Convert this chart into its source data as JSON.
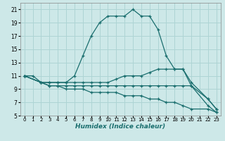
{
  "xlabel": "Humidex (Indice chaleur)",
  "background_color": "#cde8e8",
  "grid_color": "#aed4d4",
  "line_color": "#1a6e6e",
  "xlim": [
    -0.5,
    23.5
  ],
  "ylim": [
    5,
    22
  ],
  "xticks": [
    0,
    1,
    2,
    3,
    4,
    5,
    6,
    7,
    8,
    9,
    10,
    11,
    12,
    13,
    14,
    15,
    16,
    17,
    18,
    19,
    20,
    21,
    22,
    23
  ],
  "yticks": [
    5,
    7,
    9,
    11,
    13,
    15,
    17,
    19,
    21
  ],
  "series": [
    {
      "x": [
        0,
        1,
        2,
        3,
        4,
        5,
        6,
        7,
        8,
        9,
        10,
        11,
        12,
        13,
        14,
        15,
        16,
        17,
        18,
        19,
        20,
        22,
        23
      ],
      "y": [
        11,
        11,
        10,
        10,
        10,
        10,
        11,
        14,
        17,
        19,
        20,
        20,
        20,
        21,
        20,
        20,
        18,
        14,
        12,
        12,
        10,
        7.5,
        6
      ]
    },
    {
      "x": [
        0,
        2,
        3,
        4,
        5,
        6,
        7,
        8,
        9,
        10,
        11,
        12,
        13,
        14,
        15,
        16,
        17,
        18,
        19,
        20,
        22,
        23
      ],
      "y": [
        11,
        10,
        10,
        10,
        10,
        10,
        10,
        10,
        10,
        10,
        10.5,
        11,
        11,
        11,
        11.5,
        12,
        12,
        12,
        12,
        9.5,
        6.5,
        5.5
      ]
    },
    {
      "x": [
        0,
        2,
        3,
        4,
        5,
        6,
        7,
        8,
        9,
        10,
        11,
        12,
        13,
        14,
        15,
        16,
        17,
        18,
        19,
        20,
        22,
        23
      ],
      "y": [
        11,
        10,
        9.5,
        9.5,
        9.5,
        9.5,
        9.5,
        9.5,
        9.5,
        9.5,
        9.5,
        9.5,
        9.5,
        9.5,
        9.5,
        9.5,
        9.5,
        9.5,
        9.5,
        9.5,
        7.5,
        6
      ]
    },
    {
      "x": [
        0,
        2,
        3,
        4,
        5,
        6,
        7,
        8,
        9,
        10,
        11,
        12,
        13,
        14,
        15,
        16,
        17,
        18,
        19,
        20,
        22,
        23
      ],
      "y": [
        11,
        10,
        9.5,
        9.5,
        9,
        9,
        9,
        8.5,
        8.5,
        8.5,
        8.5,
        8,
        8,
        8,
        7.5,
        7.5,
        7,
        7,
        6.5,
        6,
        6,
        5.5
      ]
    }
  ]
}
